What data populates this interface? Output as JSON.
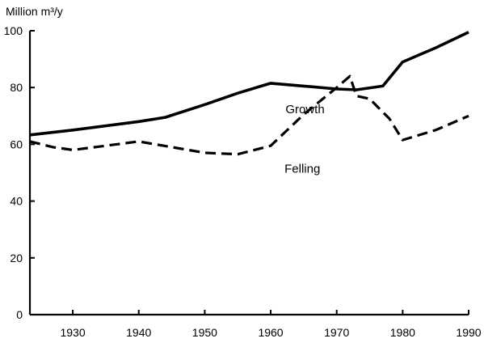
{
  "chart_data": {
    "type": "line",
    "title": "",
    "xlabel": "",
    "ylabel": "Million m³/y",
    "xlim": [
      1923.5,
      1990
    ],
    "ylim": [
      0,
      100
    ],
    "x_ticks": [
      1930,
      1940,
      1950,
      1960,
      1970,
      1980,
      1990
    ],
    "y_ticks": [
      0,
      20,
      40,
      60,
      80,
      100
    ],
    "grid": false,
    "legend": "none (series labelled inline)",
    "series": [
      {
        "name": "Growth",
        "style": "solid",
        "color": "#000000",
        "x": [
          1923.5,
          1930,
          1940,
          1944,
          1950,
          1955,
          1960,
          1965,
          1970,
          1973,
          1977,
          1980,
          1985,
          1990
        ],
        "y": [
          63.3,
          65,
          68,
          69.5,
          74,
          78,
          81.5,
          80.5,
          79.5,
          79.2,
          80.5,
          89,
          94,
          99.5
        ]
      },
      {
        "name": "Felling",
        "style": "dashed",
        "color": "#000000",
        "x": [
          1923.5,
          1927,
          1930,
          1935,
          1940,
          1945,
          1950,
          1955,
          1960,
          1965,
          1970,
          1972,
          1973,
          1975,
          1978,
          1980,
          1985,
          1990
        ],
        "y": [
          61,
          59,
          58,
          59.5,
          61,
          59,
          57,
          56.5,
          59.5,
          70.5,
          80,
          84,
          77,
          76,
          69,
          61.5,
          65,
          70
        ]
      }
    ]
  }
}
